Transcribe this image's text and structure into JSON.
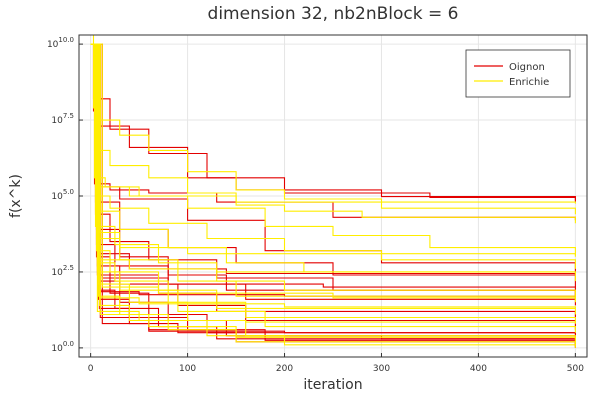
{
  "chart_data": {
    "type": "line",
    "title": "dimension 32, nb2nBlock = 6",
    "xlabel": "iteration",
    "ylabel": "f(x^k)",
    "xlim": [
      -12,
      512
    ],
    "ylim": [
      -0.3,
      10.3
    ],
    "y_scale": "log10",
    "x_ticks": [
      0,
      100,
      200,
      300,
      400,
      500
    ],
    "x_tick_labels": [
      "0",
      "100",
      "200",
      "300",
      "400",
      "500"
    ],
    "y_ticks": [
      0.0,
      2.5,
      5.0,
      7.5,
      10.0
    ],
    "y_tick_base": "10",
    "y_tick_exponents": [
      "0.0",
      "2.5",
      "5.0",
      "7.5",
      "10.0"
    ],
    "grid": true,
    "legend_position": "top-right",
    "series": [
      {
        "name": "Oignon",
        "color": "#e30000",
        "runs": [
          {
            "x": [
              0,
              3,
              10,
              40,
              100,
              150,
              300,
              500
            ],
            "y": [
              10.0,
              7.8,
              7.3,
              6.6,
              5.6,
              5.2,
              4.98,
              4.85
            ]
          },
          {
            "x": [
              0,
              3,
              20,
              60,
              120,
              200,
              350,
              500
            ],
            "y": [
              10.0,
              8.2,
              7.2,
              6.4,
              5.6,
              5.1,
              4.95,
              4.82
            ]
          },
          {
            "x": [
              0,
              4,
              20,
              60,
              130,
              250,
              500
            ],
            "y": [
              10.0,
              5.4,
              5.2,
              5.1,
              4.8,
              4.3,
              4.2
            ]
          },
          {
            "x": [
              0,
              5,
              30,
              100,
              180,
              300,
              500
            ],
            "y": [
              10.0,
              5.3,
              4.9,
              4.2,
              3.2,
              2.8,
              2.4
            ]
          },
          {
            "x": [
              0,
              5,
              30,
              80,
              150,
              250,
              500
            ],
            "y": [
              10.0,
              4.8,
              3.9,
              3.3,
              2.8,
              2.4,
              2.0
            ]
          },
          {
            "x": [
              0,
              5,
              20,
              60,
              130,
              250,
              500
            ],
            "y": [
              10.0,
              4.4,
              3.5,
              2.9,
              2.3,
              1.9,
              1.7
            ]
          },
          {
            "x": [
              0,
              6,
              30,
              80,
              140,
              500
            ],
            "y": [
              10.0,
              3.9,
              3.0,
              2.4,
              1.9,
              1.6
            ]
          },
          {
            "x": [
              0,
              6,
              25,
              80,
              160,
              500
            ],
            "y": [
              10.0,
              3.4,
              2.7,
              2.1,
              1.6,
              1.4
            ]
          },
          {
            "x": [
              0,
              6,
              20,
              70,
              130,
              500
            ],
            "y": [
              10.0,
              3.0,
              2.4,
              1.8,
              1.2,
              1.0
            ]
          },
          {
            "x": [
              0,
              7,
              30,
              90,
              160,
              500
            ],
            "y": [
              10.0,
              2.7,
              2.1,
              1.4,
              0.9,
              0.6
            ]
          },
          {
            "x": [
              0,
              7,
              20,
              60,
              120,
              500
            ],
            "y": [
              10.0,
              2.4,
              1.8,
              1.1,
              0.5,
              0.4
            ]
          },
          {
            "x": [
              0,
              8,
              30,
              80,
              140,
              500
            ],
            "y": [
              10.0,
              2.2,
              1.5,
              0.9,
              0.4,
              0.2
            ]
          },
          {
            "x": [
              0,
              8,
              25,
              70,
              130,
              500
            ],
            "y": [
              10.0,
              1.9,
              1.3,
              0.7,
              0.3,
              0.1
            ]
          },
          {
            "x": [
              0,
              8,
              40,
              100,
              180,
              500
            ],
            "y": [
              10.0,
              1.6,
              1.0,
              0.6,
              0.25,
              0.05
            ]
          },
          {
            "x": [
              0,
              9,
              40,
              90,
              150,
              500
            ],
            "y": [
              10.0,
              1.3,
              0.8,
              0.5,
              0.2,
              0.0
            ]
          },
          {
            "x": [
              0,
              10,
              60,
              150,
              300,
              500
            ],
            "y": [
              10.0,
              1.0,
              0.6,
              0.4,
              0.3,
              0.25
            ]
          },
          {
            "x": [
              0,
              10,
              50,
              200,
              500
            ],
            "y": [
              10.0,
              1.85,
              1.75,
              1.7,
              1.6
            ]
          },
          {
            "x": [
              0,
              12,
              80,
              240,
              500
            ],
            "y": [
              10.0,
              2.3,
              2.1,
              2.0,
              1.9
            ]
          },
          {
            "x": [
              0,
              12,
              60,
              200,
              500
            ],
            "y": [
              10.0,
              0.8,
              0.55,
              0.5,
              0.45
            ]
          },
          {
            "x": [
              0,
              8,
              40,
              140,
              500
            ],
            "y": [
              10.0,
              3.1,
              2.6,
              2.45,
              2.4
            ]
          }
        ]
      },
      {
        "name": "Enrichie",
        "color": "#ffee00",
        "runs": [
          {
            "x": [
              0,
              3,
              10,
              30,
              60,
              100,
              150,
              200,
              300,
              500
            ],
            "y": [
              10.3,
              7.9,
              7.5,
              7.0,
              6.5,
              5.8,
              5.2,
              4.9,
              4.6,
              4.4
            ]
          },
          {
            "x": [
              0,
              4,
              20,
              60,
              100,
              150,
              200,
              280,
              500
            ],
            "y": [
              10.0,
              6.5,
              6.0,
              5.6,
              5.1,
              4.7,
              4.5,
              4.3,
              4.1
            ]
          },
          {
            "x": [
              0,
              4,
              15,
              50,
              100,
              180,
              250,
              350,
              500
            ],
            "y": [
              10.0,
              5.6,
              5.3,
              5.0,
              4.6,
              4.0,
              3.7,
              3.3,
              3.0
            ]
          },
          {
            "x": [
              0,
              5,
              20,
              60,
              120,
              200,
              300,
              500
            ],
            "y": [
              10.0,
              5.0,
              4.6,
              4.1,
              3.6,
              3.2,
              2.9,
              2.6
            ]
          },
          {
            "x": [
              0,
              5,
              30,
              80,
              140,
              220,
              500
            ],
            "y": [
              10.0,
              4.5,
              3.9,
              3.3,
              2.8,
              2.5,
              2.2
            ]
          },
          {
            "x": [
              0,
              5,
              25,
              70,
              130,
              200,
              500
            ],
            "y": [
              10.0,
              4.0,
              3.4,
              2.8,
              2.2,
              1.9,
              1.7
            ]
          },
          {
            "x": [
              0,
              6,
              30,
              90,
              150,
              500
            ],
            "y": [
              10.0,
              3.6,
              2.9,
              2.2,
              1.7,
              1.5
            ]
          },
          {
            "x": [
              0,
              6,
              20,
              70,
              130,
              500
            ],
            "y": [
              10.0,
              3.2,
              2.5,
              1.9,
              1.3,
              1.1
            ]
          },
          {
            "x": [
              0,
              7,
              25,
              80,
              160,
              500
            ],
            "y": [
              10.0,
              2.8,
              2.2,
              1.5,
              1.0,
              0.8
            ]
          },
          {
            "x": [
              0,
              7,
              30,
              90,
              180,
              500
            ],
            "y": [
              10.0,
              2.5,
              1.9,
              1.2,
              0.7,
              0.5
            ]
          },
          {
            "x": [
              0,
              8,
              40,
              100,
              160,
              500
            ],
            "y": [
              10.0,
              2.1,
              1.5,
              0.9,
              0.4,
              0.3
            ]
          },
          {
            "x": [
              0,
              8,
              30,
              80,
              150,
              500
            ],
            "y": [
              10.0,
              1.7,
              1.1,
              0.6,
              0.2,
              0.1
            ]
          },
          {
            "x": [
              0,
              9,
              40,
              120,
              200,
              500
            ],
            "y": [
              10.0,
              1.4,
              0.9,
              0.4,
              0.1,
              0.0
            ]
          },
          {
            "x": [
              0,
              10,
              60,
              150,
              500
            ],
            "y": [
              10.0,
              1.1,
              0.7,
              0.35,
              0.15
            ]
          },
          {
            "x": [
              0,
              10,
              50,
              200,
              500
            ],
            "y": [
              10.0,
              1.65,
              1.45,
              1.35,
              1.3
            ]
          },
          {
            "x": [
              0,
              12,
              70,
              250,
              500
            ],
            "y": [
              10.0,
              2.0,
              1.8,
              1.65,
              1.55
            ]
          },
          {
            "x": [
              0,
              8,
              40,
              130,
              500
            ],
            "y": [
              10.0,
              2.9,
              2.6,
              2.5,
              2.45
            ]
          },
          {
            "x": [
              0,
              6,
              40,
              150,
              500
            ],
            "y": [
              10.0,
              5.3,
              5.0,
              4.8,
              4.75
            ]
          },
          {
            "x": [
              0,
              7,
              50,
              160,
              500
            ],
            "y": [
              10.0,
              1.2,
              0.9,
              0.85,
              0.8
            ]
          },
          {
            "x": [
              0,
              9,
              30,
              100,
              500
            ],
            "y": [
              10.0,
              3.8,
              3.3,
              3.1,
              3.05
            ]
          }
        ]
      }
    ]
  }
}
